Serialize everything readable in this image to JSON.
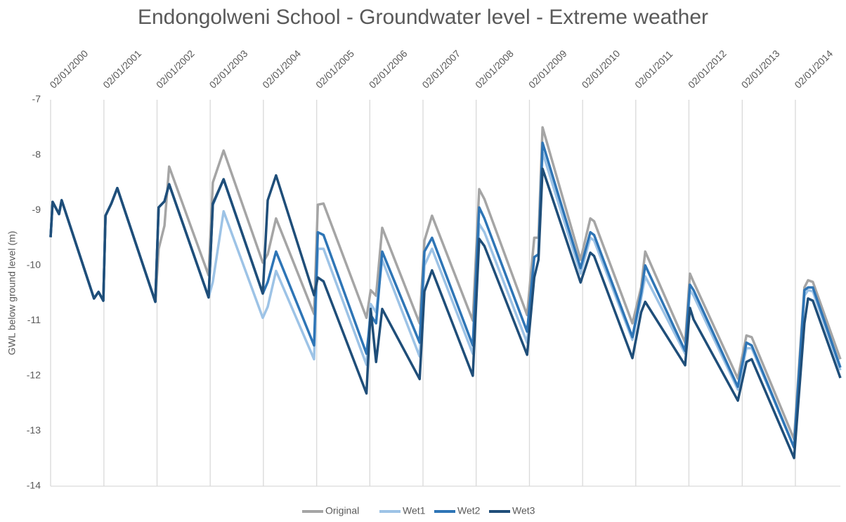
{
  "chart_data": {
    "type": "line",
    "title": "Endongolweni School - Groundwater level - Extreme weather",
    "y_label": "GWL below ground level (m)",
    "x": [
      "02/01/2000",
      "16/01/2000",
      "29/02/2000",
      "18/03/2000",
      "26/10/2000",
      "26/11/2000",
      "29/12/2000",
      "13/01/2001",
      "22/02/2001",
      "04/04/2001",
      "21/12/2001",
      "13/01/2002",
      "22/02/2002",
      "26/03/2002",
      "22/12/2002",
      "20/01/2003",
      "04/04/2003",
      "29/12/2003",
      "01/02/2004",
      "29/03/2004",
      "15/12/2004",
      "10/01/2005",
      "18/02/2005",
      "10/12/2005",
      "08/01/2006",
      "14/02/2006",
      "28/03/2006",
      "10/12/2006",
      "12/01/2007",
      "05/03/2007",
      "10/12/2007",
      "23/01/2008",
      "28/02/2008",
      "17/12/2008",
      "04/02/2009",
      "05/03/2009",
      "02/04/2009",
      "19/12/2009",
      "24/02/2010",
      "22/03/2010",
      "10/12/2010",
      "08/02/2011",
      "08/03/2011",
      "07/12/2011",
      "09/01/2012",
      "03/02/2012",
      "03/12/2012",
      "31/01/2013",
      "08/03/2013",
      "24/12/2013",
      "05/03/2014",
      "30/03/2014",
      "02/05/2014",
      "07/11/2014"
    ],
    "series": [
      {
        "name": "Original",
        "color": "#a5a5a5",
        "values": [
          -9.49,
          -8.85,
          -9.07,
          -8.82,
          -10.6,
          -10.48,
          -10.64,
          -9.1,
          -8.88,
          -8.6,
          -10.66,
          -9.7,
          -9.28,
          -8.21,
          -10.18,
          -8.5,
          -7.92,
          -9.95,
          -9.8,
          -9.15,
          -10.88,
          -8.9,
          -8.88,
          -10.95,
          -10.45,
          -10.55,
          -9.32,
          -11.05,
          -9.55,
          -9.1,
          -11.0,
          -8.62,
          -8.8,
          -10.9,
          -9.5,
          -9.5,
          -7.5,
          -9.9,
          -9.15,
          -9.2,
          -11.05,
          -10.4,
          -9.75,
          -11.4,
          -10.15,
          -10.3,
          -12.05,
          -11.27,
          -11.3,
          -13.15,
          -10.4,
          -10.27,
          -10.3,
          -11.7
        ]
      },
      {
        "name": "Wet1",
        "color": "#9dc3e6",
        "values": [
          -9.49,
          -8.85,
          -9.07,
          -8.82,
          -10.6,
          -10.48,
          -10.64,
          -9.1,
          -8.88,
          -8.6,
          -10.66,
          -8.95,
          -8.84,
          -8.53,
          -10.58,
          -10.3,
          -9.02,
          -10.95,
          -10.75,
          -10.1,
          -11.7,
          -9.7,
          -9.7,
          -11.8,
          -10.7,
          -10.85,
          -9.9,
          -11.65,
          -10.0,
          -9.7,
          -11.6,
          -9.25,
          -9.4,
          -11.4,
          -9.85,
          -9.8,
          -7.95,
          -10.15,
          -9.5,
          -9.55,
          -11.35,
          -10.6,
          -10.2,
          -11.6,
          -10.45,
          -10.55,
          -12.25,
          -11.5,
          -11.5,
          -13.3,
          -10.55,
          -10.45,
          -10.47,
          -11.9
        ]
      },
      {
        "name": "Wet2",
        "color": "#2e75b6",
        "values": [
          -9.49,
          -8.85,
          -9.07,
          -8.82,
          -10.6,
          -10.48,
          -10.64,
          -9.1,
          -8.88,
          -8.6,
          -10.66,
          -8.95,
          -8.84,
          -8.53,
          -10.58,
          -8.9,
          -8.44,
          -10.51,
          -10.3,
          -9.75,
          -11.45,
          -9.4,
          -9.45,
          -11.6,
          -10.9,
          -11.05,
          -9.75,
          -11.4,
          -9.75,
          -9.5,
          -11.45,
          -8.95,
          -9.15,
          -11.2,
          -9.85,
          -9.8,
          -7.78,
          -10.05,
          -9.4,
          -9.45,
          -11.3,
          -10.5,
          -10.0,
          -11.55,
          -10.35,
          -10.45,
          -12.2,
          -11.4,
          -11.45,
          -13.3,
          -10.45,
          -10.4,
          -10.4,
          -11.85
        ]
      },
      {
        "name": "Wet3",
        "color": "#1f4e79",
        "values": [
          -9.49,
          -8.85,
          -9.07,
          -8.82,
          -10.6,
          -10.48,
          -10.64,
          -9.1,
          -8.88,
          -8.6,
          -10.66,
          -8.95,
          -8.84,
          -8.53,
          -10.58,
          -8.88,
          -8.44,
          -10.51,
          -8.82,
          -8.37,
          -10.54,
          -10.22,
          -10.29,
          -12.32,
          -10.79,
          -11.75,
          -10.79,
          -12.06,
          -10.47,
          -10.09,
          -12.0,
          -9.52,
          -9.65,
          -11.62,
          -10.22,
          -9.9,
          -8.25,
          -10.31,
          -9.77,
          -9.83,
          -11.68,
          -10.85,
          -10.66,
          -11.81,
          -10.77,
          -10.98,
          -12.45,
          -11.75,
          -11.7,
          -13.49,
          -11.05,
          -10.6,
          -10.64,
          -12.04
        ]
      }
    ],
    "xlim": [
      "02/01/2000",
      "07/11/2014"
    ],
    "xticks": [
      "02/01/2000",
      "02/01/2001",
      "02/01/2002",
      "02/01/2003",
      "02/01/2004",
      "02/01/2005",
      "02/01/2006",
      "02/01/2007",
      "02/01/2008",
      "02/01/2009",
      "02/01/2010",
      "02/01/2011",
      "02/01/2012",
      "02/01/2013",
      "02/01/2014"
    ],
    "ylim": [
      -14,
      -7
    ],
    "yticks": [
      -14,
      -13,
      -12,
      -11,
      -10,
      -9,
      -8,
      -7
    ],
    "grid": "x",
    "legend": "bottom"
  }
}
